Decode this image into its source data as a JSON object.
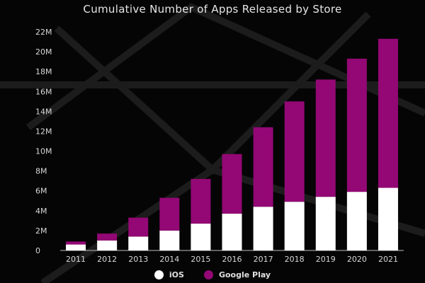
{
  "title": "Cumulative Number of Apps Released by Store",
  "colors": {
    "ios": "#ffffff",
    "google_play": "#930874",
    "background": "#050505",
    "text": "#e0e0e0"
  },
  "chart_data": {
    "type": "bar",
    "stacked": true,
    "title": "Cumulative Number of Apps Released by Store",
    "categories": [
      "2011",
      "2012",
      "2013",
      "2014",
      "2015",
      "2016",
      "2017",
      "2018",
      "2019",
      "2020",
      "2021"
    ],
    "series": [
      {
        "name": "iOS",
        "color": "#ffffff",
        "values": [
          0.6,
          1.0,
          1.4,
          2.0,
          2.7,
          3.7,
          4.4,
          4.9,
          5.4,
          5.9,
          6.3
        ]
      },
      {
        "name": "Google Play",
        "color": "#930874",
        "values": [
          0.3,
          0.7,
          1.9,
          3.3,
          4.5,
          6.0,
          8.0,
          10.1,
          11.8,
          13.4,
          15.0
        ]
      }
    ],
    "y_ticks": [
      "0",
      "2M",
      "4M",
      "6M",
      "8M",
      "10M",
      "12M",
      "14M",
      "16M",
      "18M",
      "20M",
      "22M"
    ],
    "ylim": [
      0,
      22
    ],
    "xlabel": "",
    "ylabel": "",
    "grid": false,
    "legend_position": "bottom"
  }
}
